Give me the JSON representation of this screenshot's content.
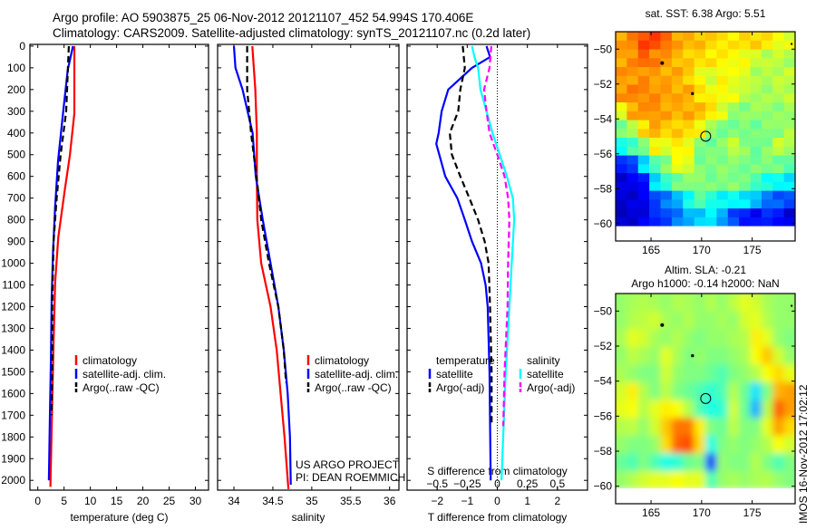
{
  "title": {
    "line1": "Argo profile: AO 5903875_25 06-Nov-2012 20121107_452 54.994S 170.406E",
    "line2": "Climatology: CARS2009. Satellite-adjusted climatology: synTS_20121107.nc (0.2d later)"
  },
  "credit": {
    "line1": "US ARGO PROJECT",
    "line2": "PI: DEAN ROEMMICH"
  },
  "stamp": "IMOS 16-Nov-2012 17:02:12",
  "colors": {
    "climatology": "#ff0000",
    "satellite": "#0000ff",
    "argo": "#000000",
    "sal_satellite": "#00ffff",
    "sal_argo": "#ff00ff"
  },
  "chart_data": [
    {
      "type": "line",
      "name": "temperature-profile",
      "xlabel": "temperature (deg C)",
      "ylabel": "",
      "xlim": [
        -1.5,
        32.5
      ],
      "ylim": [
        2045,
        -8
      ],
      "xticks": [
        0,
        5,
        10,
        15,
        20,
        25,
        30
      ],
      "yticks": [
        0,
        100,
        200,
        300,
        400,
        500,
        600,
        700,
        800,
        900,
        1000,
        1100,
        1200,
        1300,
        1400,
        1500,
        1600,
        1700,
        1800,
        1900,
        2000
      ],
      "legend": {
        "placement": "lower-middle",
        "entries": [
          "climatology",
          "satellite-adj. clim.",
          "Argo(..raw -QC)"
        ]
      },
      "series": [
        {
          "name": "climatology",
          "color": "#ff0000",
          "style": "solid",
          "depth": [
            0,
            310,
            505,
            670,
            880,
            1090,
            1360,
            1640,
            2030
          ],
          "values": [
            6.95,
            6.95,
            6.1,
            5.1,
            3.9,
            3.3,
            3.0,
            2.75,
            2.4
          ]
        },
        {
          "name": "satellite-adj. clim.",
          "color": "#0000ff",
          "style": "solid",
          "depth": [
            0,
            110,
            310,
            530,
            740,
            945,
            1155,
            1430,
            1710,
            2000
          ],
          "values": [
            6.7,
            5.7,
            4.8,
            3.85,
            3.3,
            2.9,
            2.65,
            2.5,
            2.3,
            2.1
          ]
        },
        {
          "name": "Argo(..raw -QC)",
          "color": "#000000",
          "style": "dashed",
          "depth": [
            0,
            300,
            500,
            700,
            900,
            1200,
            1500,
            1700
          ],
          "values": [
            5.9,
            5.4,
            4.35,
            3.6,
            3.0,
            2.75,
            2.75,
            2.6
          ]
        }
      ]
    },
    {
      "type": "line",
      "name": "salinity-profile",
      "xlabel": "salinity",
      "xlim": [
        33.79,
        36.12
      ],
      "ylim": [
        2045,
        -8
      ],
      "xticks": [
        34,
        34.5,
        35,
        35.5,
        36
      ],
      "legend": {
        "placement": "lower-right",
        "entries": [
          "climatology",
          "satellite-adj. clim.",
          "Argo(..raw -QC)"
        ]
      },
      "series": [
        {
          "name": "climatology",
          "color": "#ff0000",
          "style": "solid",
          "depth": [
            0,
            200,
            400,
            600,
            800,
            1000,
            1200,
            1400,
            1600,
            1800,
            2040
          ],
          "values": [
            34.236,
            34.275,
            34.295,
            34.295,
            34.3,
            34.35,
            34.47,
            34.55,
            34.6,
            34.65,
            34.7
          ]
        },
        {
          "name": "satellite-adj. clim.",
          "color": "#0000ff",
          "style": "solid",
          "depth": [
            0,
            100,
            200,
            400,
            600,
            800,
            1000,
            1200,
            1400,
            1600,
            1800,
            2020
          ],
          "values": [
            34.0,
            34.02,
            34.11,
            34.24,
            34.28,
            34.37,
            34.47,
            34.57,
            34.64,
            34.69,
            34.72,
            34.73
          ]
        },
        {
          "name": "Argo(..raw -QC)",
          "color": "#000000",
          "style": "dashed",
          "depth": [
            0,
            200,
            400,
            600,
            800,
            1000,
            1200,
            1400,
            1550
          ],
          "values": [
            34.17,
            34.17,
            34.22,
            34.29,
            34.35,
            34.45,
            34.57,
            34.64,
            34.67
          ]
        }
      ]
    },
    {
      "type": "line",
      "name": "difference-profile",
      "xlabel": "T difference from climatology",
      "xlabel2": "S difference from climatology",
      "xlim": [
        -3,
        3
      ],
      "xlim2": [
        -0.75,
        0.75
      ],
      "ylim": [
        2045,
        -8
      ],
      "xticks": [
        -2,
        -1,
        0,
        1,
        2
      ],
      "xticks2": [
        -0.5,
        -0.25,
        0,
        0.25,
        0.5
      ],
      "legend": {
        "placement": "lower-middle",
        "groups": [
          {
            "title": "temperature",
            "entries": [
              "satellite",
              "Argo(-adj)"
            ]
          },
          {
            "title": "salinity",
            "entries": [
              "satellite",
              "Argo(-adj)"
            ]
          }
        ]
      },
      "series": [
        {
          "name": "temperature satellite",
          "axis": "T",
          "color": "#0000ff",
          "style": "solid",
          "depth": [
            0,
            50,
            100,
            200,
            300,
            400,
            450,
            500,
            600,
            700,
            800,
            900,
            1000,
            1100,
            1200,
            1500,
            2000
          ],
          "values": [
            -0.36,
            -0.24,
            -0.84,
            -1.63,
            -1.85,
            -1.95,
            -2.03,
            -1.93,
            -1.73,
            -1.33,
            -1.08,
            -0.84,
            -0.54,
            -0.39,
            -0.32,
            -0.26,
            -0.22
          ]
        },
        {
          "name": "temperature Argo(-adj)",
          "axis": "T",
          "color": "#000000",
          "style": "dashed",
          "depth": [
            0,
            100,
            200,
            300,
            400,
            500,
            600,
            700,
            800,
            900,
            1000,
            1200,
            1500,
            1750
          ],
          "values": [
            -1.15,
            -1.08,
            -1.23,
            -1.3,
            -1.58,
            -1.51,
            -1.23,
            -0.93,
            -0.64,
            -0.42,
            -0.29,
            -0.24,
            -0.19,
            -0.19
          ]
        },
        {
          "name": "salinity satellite",
          "axis": "S",
          "color": "#00ffff",
          "style": "solid",
          "depth": [
            0,
            50,
            100,
            200,
            300,
            400,
            500,
            600,
            700,
            800,
            1000,
            1200,
            1500,
            2000
          ],
          "values": [
            -0.21,
            -0.19,
            -0.16,
            -0.14,
            -0.09,
            -0.04,
            0.02,
            0.08,
            0.13,
            0.14,
            0.12,
            0.1,
            0.07,
            0.035
          ]
        },
        {
          "name": "salinity Argo(-adj)",
          "axis": "S",
          "color": "#ff00ff",
          "style": "dashed",
          "depth": [
            0,
            100,
            200,
            300,
            400,
            500,
            600,
            700,
            800,
            1000,
            1200,
            1500,
            1750
          ],
          "values": [
            -0.05,
            -0.065,
            -0.11,
            -0.09,
            -0.065,
            0.0,
            0.06,
            0.09,
            0.1,
            0.09,
            0.085,
            0.06,
            0.05
          ]
        }
      ]
    },
    {
      "type": "heatmap",
      "name": "sst-map",
      "title": "sat. SST: 6.38 Argo: 5.51",
      "xlim": [
        161.5,
        179.25
      ],
      "ylim": [
        -61,
        -49
      ],
      "xticks": [
        165,
        170,
        175
      ],
      "yticks": [
        -50,
        -52,
        -54,
        -56,
        -58,
        -60
      ],
      "data_lat_range": [
        -49,
        -60.15
      ],
      "marker": {
        "lon": 170.406,
        "lat": -54.994
      },
      "grid": [
        [
          0.72,
          0.75,
          0.8,
          0.8,
          0.78,
          0.72,
          0.7,
          0.68,
          0.66,
          0.66,
          0.65,
          0.66,
          0.66,
          0.64,
          0.62,
          0.6
        ],
        [
          0.72,
          0.74,
          0.78,
          0.74,
          0.72,
          0.7,
          0.68,
          0.66,
          0.64,
          0.63,
          0.63,
          0.62,
          0.58,
          0.55,
          0.56,
          0.55
        ],
        [
          0.72,
          0.73,
          0.74,
          0.72,
          0.7,
          0.7,
          0.68,
          0.62,
          0.58,
          0.62,
          0.6,
          0.6,
          0.55,
          0.55,
          0.55,
          0.56
        ],
        [
          0.72,
          0.74,
          0.75,
          0.74,
          0.72,
          0.7,
          0.7,
          0.66,
          0.63,
          0.62,
          0.6,
          0.55,
          0.55,
          0.54,
          0.55,
          0.55
        ],
        [
          0.6,
          0.7,
          0.72,
          0.74,
          0.72,
          0.7,
          0.7,
          0.68,
          0.66,
          0.6,
          0.52,
          0.5,
          0.52,
          0.53,
          0.52,
          0.53
        ],
        [
          0.5,
          0.55,
          0.65,
          0.7,
          0.68,
          0.68,
          0.66,
          0.62,
          0.52,
          0.5,
          0.5,
          0.5,
          0.48,
          0.5,
          0.52,
          0.55
        ],
        [
          0.4,
          0.45,
          0.5,
          0.62,
          0.58,
          0.65,
          0.62,
          0.5,
          0.48,
          0.5,
          0.58,
          0.52,
          0.48,
          0.5,
          0.56,
          0.55
        ],
        [
          0.15,
          0.2,
          0.35,
          0.45,
          0.5,
          0.6,
          0.6,
          0.5,
          0.5,
          0.5,
          0.5,
          0.5,
          0.5,
          0.5,
          0.48,
          0.45
        ],
        [
          0.08,
          0.1,
          0.15,
          0.35,
          0.42,
          0.48,
          0.5,
          0.52,
          0.5,
          0.5,
          0.5,
          0.48,
          0.45,
          0.4,
          0.38,
          0.35
        ],
        [
          0.08,
          0.08,
          0.1,
          0.2,
          0.25,
          0.3,
          0.38,
          0.45,
          0.42,
          0.38,
          0.38,
          0.35,
          0.3,
          0.25,
          0.22,
          0.2
        ],
        [
          0.08,
          0.08,
          0.1,
          0.15,
          0.2,
          0.25,
          0.3,
          0.32,
          0.35,
          0.3,
          0.2,
          0.15,
          0.12,
          0.15,
          0.15,
          0.1
        ]
      ]
    },
    {
      "type": "heatmap",
      "name": "sla-map",
      "title": "Altim. SLA: -0.21",
      "subtitle": "Argo h1000: -0.14 h2000: NaN",
      "xlim": [
        161.5,
        179.25
      ],
      "ylim": [
        -61,
        -49
      ],
      "xticks": [
        165,
        170,
        175
      ],
      "yticks": [
        -50,
        -52,
        -54,
        -56,
        -58,
        -60
      ],
      "data_lat_range": [
        -49,
        -60.15
      ],
      "marker": {
        "lon": 170.406,
        "lat": -54.994
      },
      "grid": [
        [
          0.52,
          0.54,
          0.55,
          0.54,
          0.52,
          0.55,
          0.54,
          0.52,
          0.55,
          0.52,
          0.56,
          0.6,
          0.58,
          0.54,
          0.52,
          0.52
        ],
        [
          0.52,
          0.55,
          0.56,
          0.58,
          0.54,
          0.52,
          0.55,
          0.52,
          0.52,
          0.54,
          0.52,
          0.58,
          0.6,
          0.55,
          0.52,
          0.52
        ],
        [
          0.54,
          0.6,
          0.58,
          0.54,
          0.52,
          0.55,
          0.52,
          0.5,
          0.52,
          0.52,
          0.54,
          0.55,
          0.64,
          0.6,
          0.52,
          0.5
        ],
        [
          0.52,
          0.56,
          0.54,
          0.52,
          0.6,
          0.54,
          0.5,
          0.52,
          0.5,
          0.5,
          0.52,
          0.54,
          0.62,
          0.68,
          0.58,
          0.52
        ],
        [
          0.54,
          0.52,
          0.5,
          0.5,
          0.58,
          0.52,
          0.5,
          0.5,
          0.48,
          0.45,
          0.5,
          0.52,
          0.55,
          0.62,
          0.66,
          0.6
        ],
        [
          0.58,
          0.64,
          0.55,
          0.5,
          0.56,
          0.5,
          0.48,
          0.45,
          0.42,
          0.45,
          0.55,
          0.48,
          0.35,
          0.5,
          0.7,
          0.72
        ],
        [
          0.6,
          0.62,
          0.55,
          0.6,
          0.64,
          0.62,
          0.55,
          0.45,
          0.4,
          0.42,
          0.58,
          0.48,
          0.3,
          0.55,
          0.78,
          0.72
        ],
        [
          0.55,
          0.56,
          0.52,
          0.58,
          0.68,
          0.76,
          0.76,
          0.64,
          0.5,
          0.48,
          0.56,
          0.5,
          0.5,
          0.6,
          0.72,
          0.66
        ],
        [
          0.52,
          0.5,
          0.5,
          0.52,
          0.66,
          0.78,
          0.8,
          0.66,
          0.4,
          0.5,
          0.52,
          0.5,
          0.52,
          0.55,
          0.62,
          0.58
        ],
        [
          0.48,
          0.45,
          0.5,
          0.45,
          0.4,
          0.42,
          0.48,
          0.5,
          0.2,
          0.52,
          0.5,
          0.5,
          0.55,
          0.5,
          0.45,
          0.5
        ],
        [
          0.52,
          0.55,
          0.58,
          0.6,
          0.6,
          0.62,
          0.6,
          0.6,
          0.45,
          0.52,
          0.54,
          0.52,
          0.54,
          0.55,
          0.52,
          0.5
        ]
      ]
    }
  ]
}
